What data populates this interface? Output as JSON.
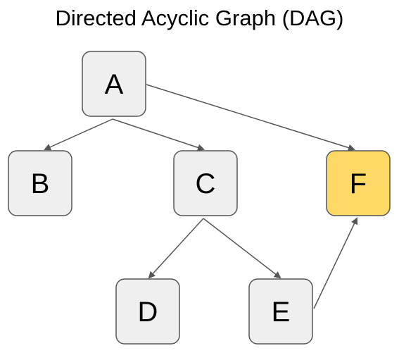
{
  "title": "Directed Acyclic Graph (DAG)",
  "colors": {
    "node_fill": "#efefef",
    "node_stroke": "#555555",
    "highlight_fill": "#ffd966",
    "edge": "#555555"
  },
  "nodes": [
    {
      "id": "A",
      "label": "A",
      "highlighted": false
    },
    {
      "id": "B",
      "label": "B",
      "highlighted": false
    },
    {
      "id": "C",
      "label": "C",
      "highlighted": false
    },
    {
      "id": "D",
      "label": "D",
      "highlighted": false
    },
    {
      "id": "E",
      "label": "E",
      "highlighted": false
    },
    {
      "id": "F",
      "label": "F",
      "highlighted": true
    }
  ],
  "edges": [
    {
      "from": "A",
      "to": "B"
    },
    {
      "from": "A",
      "to": "C"
    },
    {
      "from": "A",
      "to": "F"
    },
    {
      "from": "C",
      "to": "D"
    },
    {
      "from": "C",
      "to": "E"
    },
    {
      "from": "E",
      "to": "F"
    }
  ]
}
